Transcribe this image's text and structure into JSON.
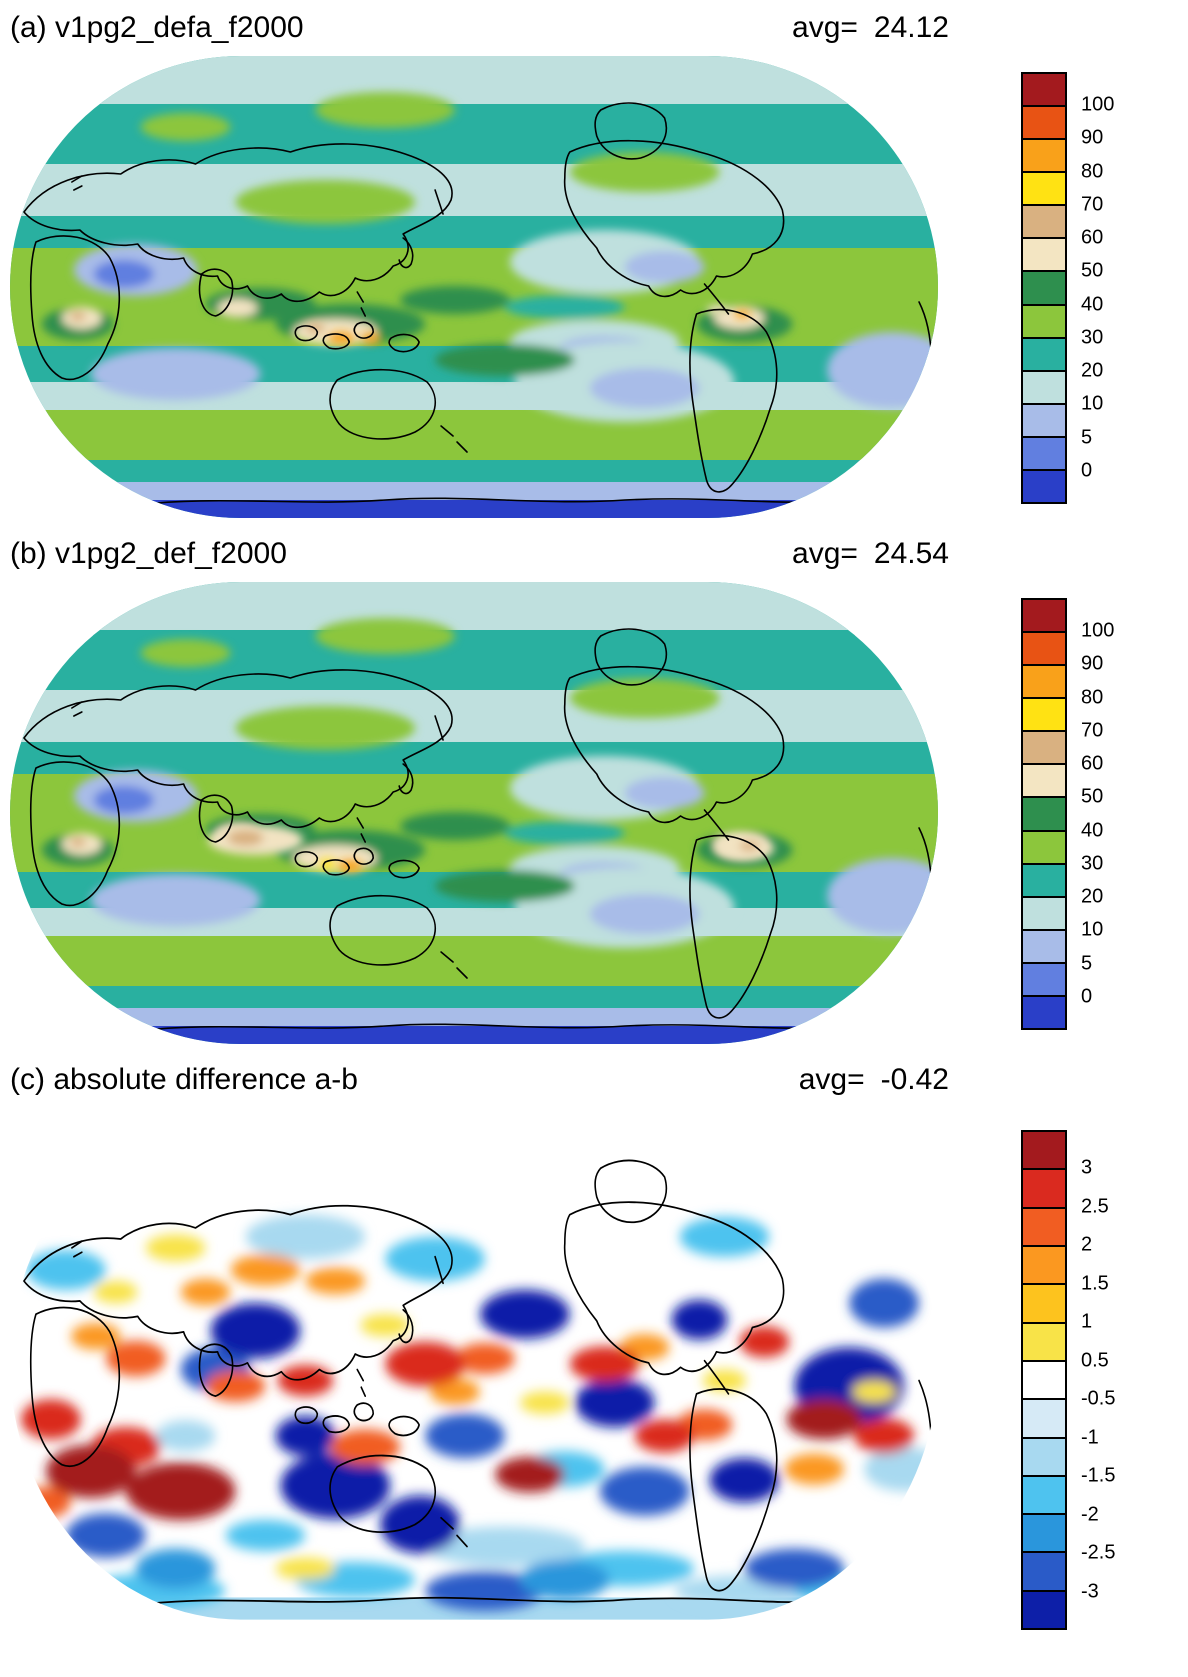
{
  "figure": {
    "panels": [
      {
        "id": "a",
        "title": "(a) v1pg2_defa_f2000",
        "avg_label": "avg=",
        "avg_value": "24.12",
        "colorbar": {
          "tick_labels": [
            "100",
            "90",
            "80",
            "70",
            "60",
            "50",
            "40",
            "30",
            "20",
            "10",
            "5",
            "0"
          ],
          "colors_top_to_bottom": [
            "#a31a1e",
            "#e85314",
            "#f9a11a",
            "#ffe213",
            "#d9b181",
            "#f3e5c2",
            "#2e8f4e",
            "#8cc63c",
            "#29b0a0",
            "#bfe0de",
            "#a8bce8",
            "#617fe0",
            "#2a3fc8"
          ]
        }
      },
      {
        "id": "b",
        "title": "(b) v1pg2_def_f2000",
        "avg_label": "avg=",
        "avg_value": "24.54",
        "colorbar": {
          "tick_labels": [
            "100",
            "90",
            "80",
            "70",
            "60",
            "50",
            "40",
            "30",
            "20",
            "10",
            "5",
            "0"
          ],
          "colors_top_to_bottom": [
            "#a31a1e",
            "#e85314",
            "#f9a11a",
            "#ffe213",
            "#d9b181",
            "#f3e5c2",
            "#2e8f4e",
            "#8cc63c",
            "#29b0a0",
            "#bfe0de",
            "#a8bce8",
            "#617fe0",
            "#2a3fc8"
          ]
        }
      },
      {
        "id": "c",
        "title": "(c) absolute difference a-b",
        "avg_label": "avg=",
        "avg_value": "-0.42",
        "colorbar": {
          "tick_labels": [
            "3",
            "2.5",
            "2",
            "1.5",
            "1",
            "0.5",
            "-0.5",
            "-1",
            "-1.5",
            "-2",
            "-2.5",
            "-3"
          ],
          "colors_top_to_bottom": [
            "#a31a1e",
            "#da2a1f",
            "#f15d22",
            "#fb9820",
            "#fdc31e",
            "#f8e348",
            "#ffffff",
            "#d6eaf6",
            "#a8d9f0",
            "#4ec3ef",
            "#2a96dc",
            "#2a5bc8",
            "#0d1fa8"
          ]
        }
      }
    ]
  },
  "chart_data": [
    {
      "type": "heatmap",
      "title": "(a) v1pg2_defa_f2000",
      "stat": {
        "label": "avg=",
        "value": 24.12
      },
      "projection": "global Robinson map, Pacific-centered, coastlines overlaid",
      "levels": [
        0,
        5,
        10,
        20,
        30,
        40,
        50,
        60,
        70,
        80,
        90,
        100
      ],
      "palette_low_to_high": [
        "#2a3fc8",
        "#617fe0",
        "#a8bce8",
        "#bfe0de",
        "#29b0a0",
        "#8cc63c",
        "#2e8f4e",
        "#f3e5c2",
        "#d9b181",
        "#ffe213",
        "#f9a11a",
        "#e85314",
        "#a31a1e"
      ],
      "legend_position": "right",
      "notes": "Filled-contour global field: tropics mostly 30-50 with 50-70 cream/tan maxima and 80-90 orange spots over equatorial Africa, the Maritime Continent and northern South America; subtropical oceans 5-20 (pale blue/periwinkle); Middle East 0-10; high southern latitudes below 5 with dark blue (<0) around Antarctica."
    },
    {
      "type": "heatmap",
      "title": "(b) v1pg2_def_f2000",
      "stat": {
        "label": "avg=",
        "value": 24.54
      },
      "projection": "global Robinson map, Pacific-centered, coastlines overlaid",
      "levels": [
        0,
        5,
        10,
        20,
        30,
        40,
        50,
        60,
        70,
        80,
        90,
        100
      ],
      "palette_low_to_high": [
        "#2a3fc8",
        "#617fe0",
        "#a8bce8",
        "#bfe0de",
        "#29b0a0",
        "#8cc63c",
        "#2e8f4e",
        "#f3e5c2",
        "#d9b181",
        "#ffe213",
        "#f9a11a",
        "#e85314",
        "#a31a1e"
      ],
      "legend_position": "right",
      "notes": "Same field as (a) but with larger 50-70 cream maxima over the equatorial Indian Ocean and Maritime Continent (including a 70-80 yellow spot near Indonesia) and over South America; overall pattern otherwise very similar to panel (a)."
    },
    {
      "type": "heatmap",
      "title": "(c) absolute difference a-b",
      "stat": {
        "label": "avg=",
        "value": -0.42
      },
      "projection": "global Robinson map, Pacific-centered, coastlines overlaid",
      "levels": [
        -3,
        -2.5,
        -2,
        -1.5,
        -1,
        -0.5,
        0.5,
        1,
        1.5,
        2,
        2.5,
        3
      ],
      "palette_low_to_high": [
        "#0d1fa8",
        "#2a5bc8",
        "#2a96dc",
        "#4ec3ef",
        "#a8d9f0",
        "#d6eaf6",
        "#ffffff",
        "#f8e348",
        "#fdc31e",
        "#fb9820",
        "#f15d22",
        "#da2a1f",
        "#a31a1e"
      ],
      "legend_position": "right",
      "notes": "Difference map (a minus b): near-zero white over much of the globe; strong negative (dark blue, <-2) patches over the Maritime Continent, Australia, East Asia and parts of the Pacific and Atlantic; strong positive (dark red, >2) patches over southern Africa, the south Indian Ocean, the central Pacific and east of South America; light cyan/blue band over the Southern Ocean."
    }
  ]
}
